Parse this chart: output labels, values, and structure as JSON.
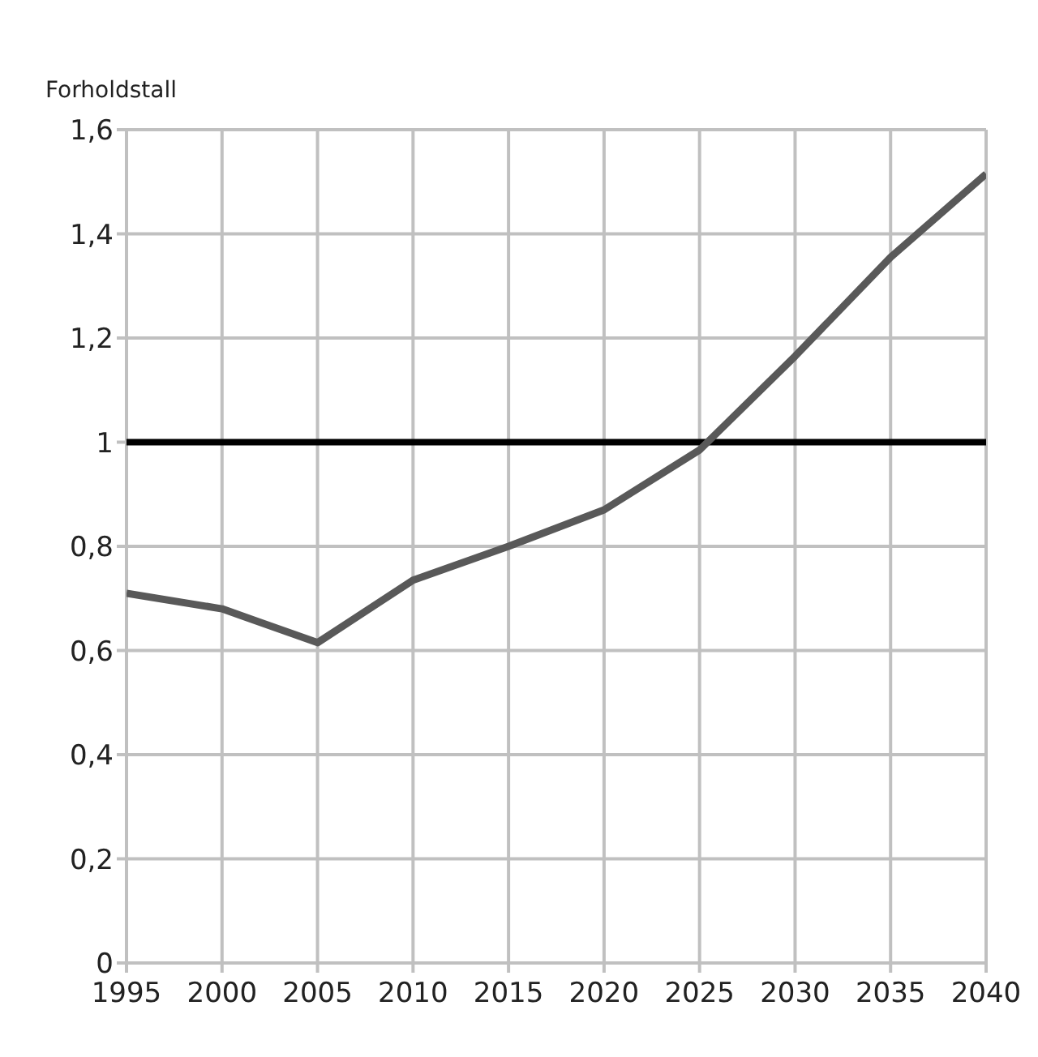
{
  "chart_data": {
    "type": "line",
    "ylabel": "Forholdstall",
    "x": [
      1995,
      2000,
      2005,
      2010,
      2015,
      2020,
      2025,
      2030,
      2035,
      2040
    ],
    "series": [
      {
        "color": "#595959",
        "values": [
          0.71,
          0.68,
          0.615,
          0.735,
          0.8,
          0.87,
          0.985,
          1.165,
          1.355,
          1.515
        ]
      }
    ],
    "xlim": [
      1995,
      2040
    ],
    "xticks": [
      1995,
      2000,
      2005,
      2010,
      2015,
      2020,
      2025,
      2030,
      2035,
      2040
    ],
    "ylim": [
      0,
      1.6
    ],
    "yticks": [
      0,
      {
        "value": 0.2,
        "label": "0,2"
      },
      {
        "value": 0.4,
        "label": "0,4"
      },
      {
        "value": 0.6,
        "label": "0,6"
      },
      {
        "value": 0.8,
        "label": "0,8"
      },
      1,
      {
        "value": 1.2,
        "label": "1,2"
      },
      {
        "value": 1.4,
        "label": "1,4"
      },
      {
        "value": 1.6,
        "label": "1,6"
      }
    ],
    "ref_lines": [
      {
        "axis": "y",
        "value": 1,
        "color": "#000000"
      }
    ],
    "grid": true,
    "legend": false,
    "marker": "none",
    "line_style": "solid"
  }
}
